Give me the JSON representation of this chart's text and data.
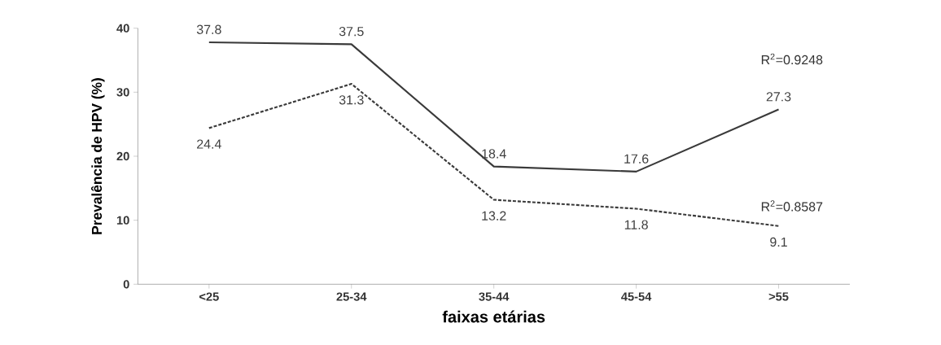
{
  "chart_data": {
    "type": "line",
    "ylabel": "Prevalência de HPV (%)",
    "xlabel": "faixas etárias",
    "categories": [
      "<25",
      "25-34",
      "35-44",
      "45-54",
      ">55"
    ],
    "series": [
      {
        "color": "#3a3a3a",
        "line_style": "solid",
        "values": [
          37.8,
          37.5,
          18.4,
          17.6,
          27.3
        ]
      },
      {
        "color": "#3a3a3a",
        "line_style": "dashed",
        "values": [
          24.4,
          31.3,
          13.2,
          11.8,
          9.1
        ]
      }
    ],
    "annotations": [
      "R$^{2}$=0.9248",
      "R$^{2}$=0.8587"
    ],
    "ylim": [
      0,
      40
    ],
    "yticks": [
      0,
      10,
      20,
      30,
      40
    ],
    "grid": false,
    "data_labels": true,
    "marker": "none"
  }
}
